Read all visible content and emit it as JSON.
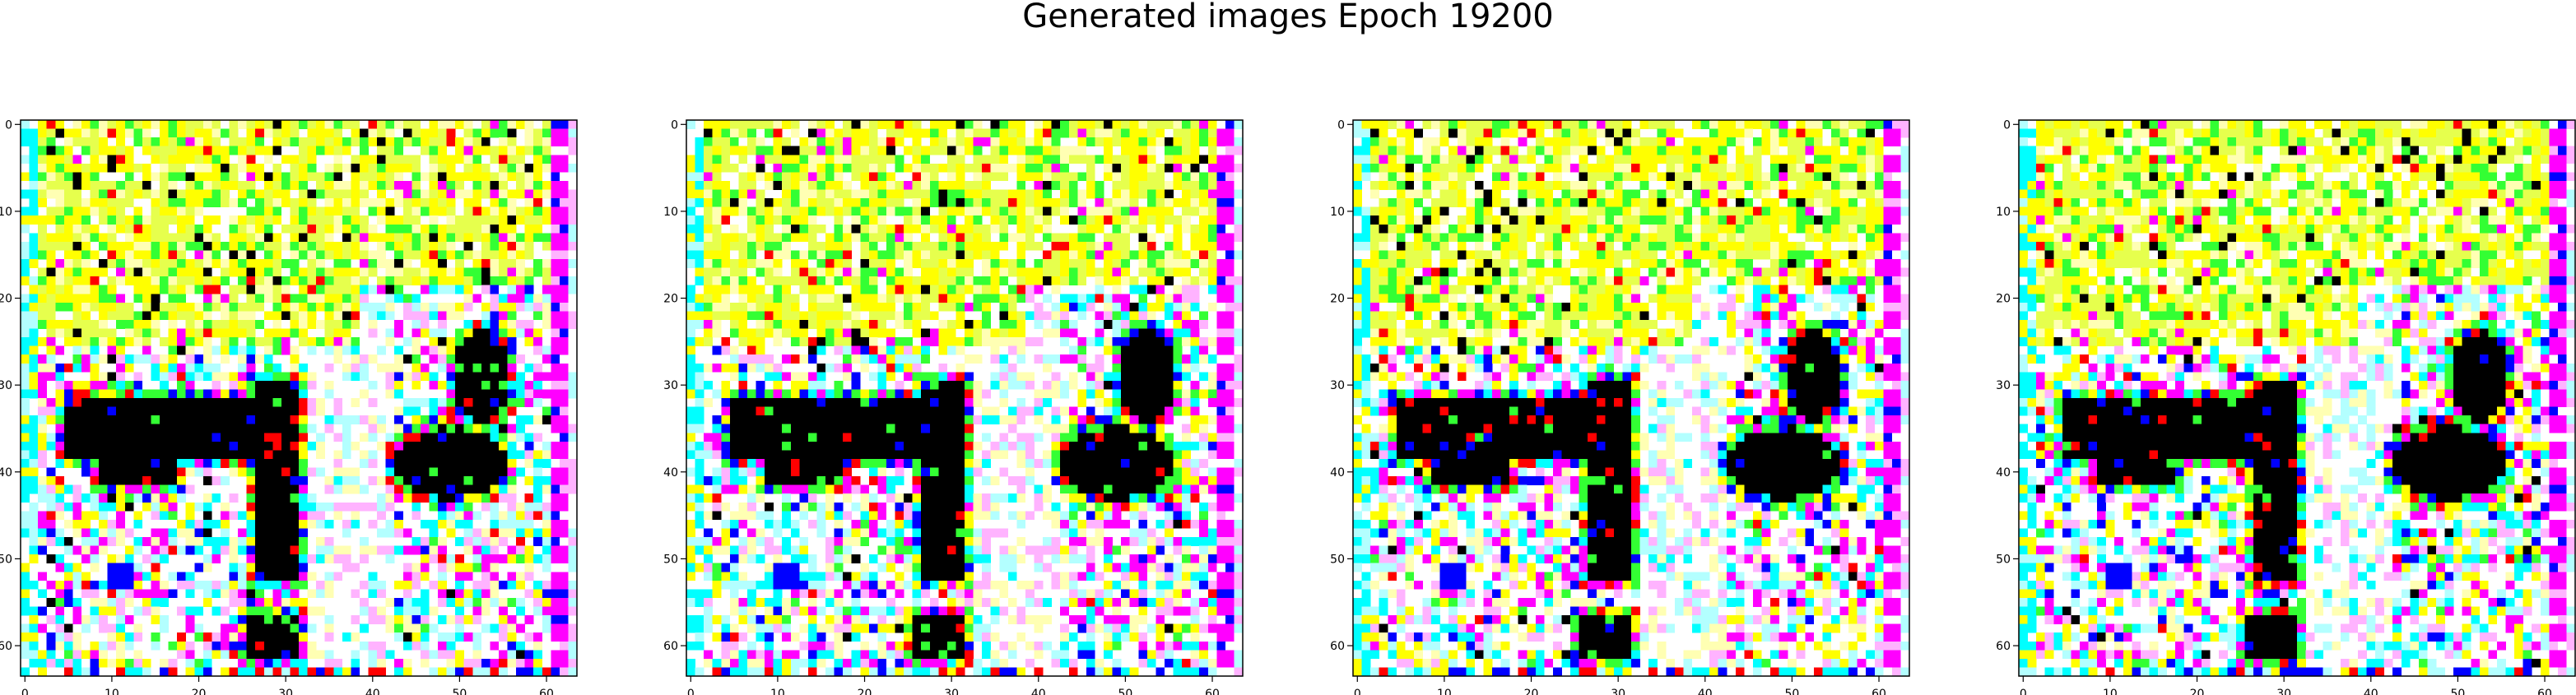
{
  "figure": {
    "title": "Generated images Epoch 19200",
    "x_ticks": [
      "0",
      "10",
      "20",
      "30",
      "40",
      "50",
      "60"
    ],
    "y_ticks": [
      "0",
      "10",
      "20",
      "30",
      "40",
      "50",
      "60"
    ],
    "image_grid_size": 64,
    "panel_count": 4
  },
  "palette": {
    "white": "#ffffff",
    "yellow": "#ffff00",
    "lime": "#e6ff4d",
    "lightyellow": "#ffffb3",
    "green": "#33ff33",
    "black": "#000000",
    "magenta": "#ff00ff",
    "pink": "#ffb3ff",
    "cyan": "#00ffff",
    "lightcyan": "#b3ffff",
    "blue": "#0000ff",
    "red": "#ff0000"
  }
}
